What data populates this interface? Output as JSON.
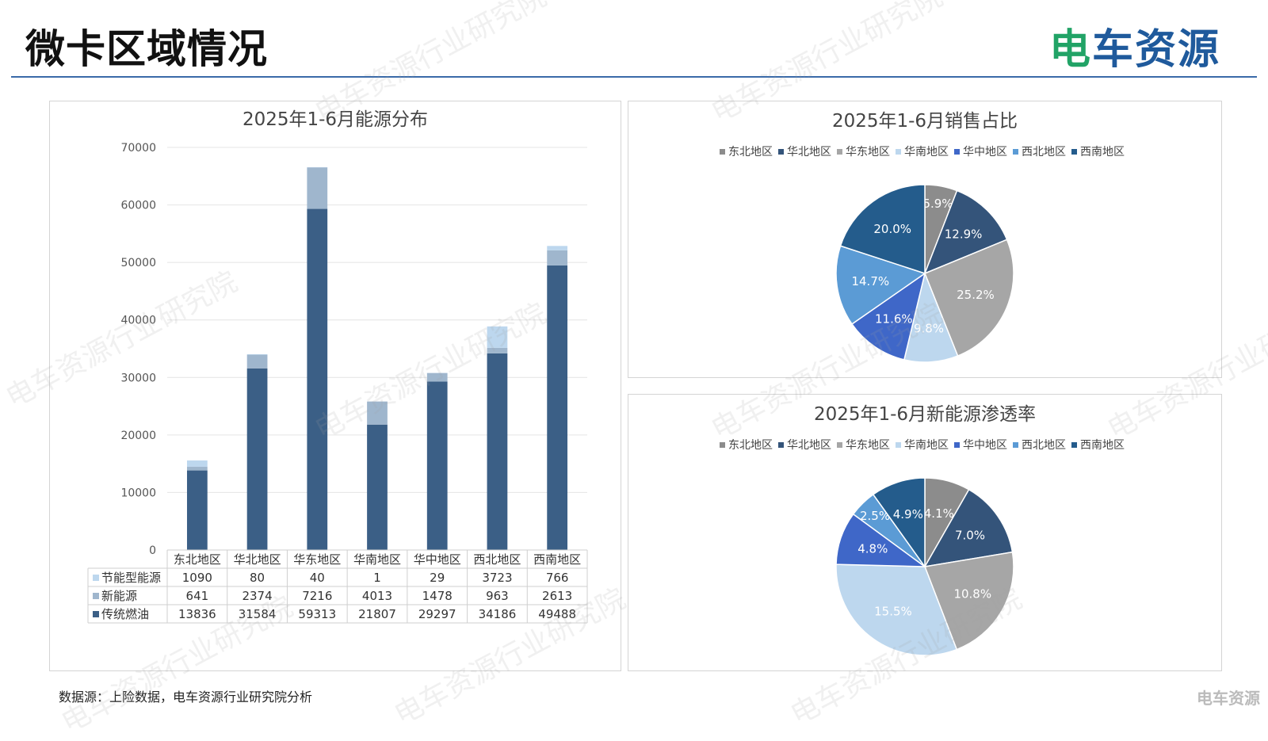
{
  "header": {
    "title": "微卡区域情况",
    "brand_left": "电",
    "brand_right": "车资源"
  },
  "footer": {
    "source": "数据源：上险数据，电车资源行业研究院分析",
    "corner": "电车资源"
  },
  "watermark": "电车资源行业研究院",
  "chart_data": [
    {
      "type": "bar",
      "stacked": true,
      "title": "2025年1-6月能源分布",
      "categories": [
        "东北地区",
        "华北地区",
        "华东地区",
        "华南地区",
        "华中地区",
        "西北地区",
        "西南地区"
      ],
      "ylim": [
        0,
        70000
      ],
      "yticks": [
        0,
        10000,
        20000,
        30000,
        40000,
        50000,
        60000,
        70000
      ],
      "grid": true,
      "legend": "data-table",
      "series": [
        {
          "name": "节能型能源",
          "color": "#bdd7ee",
          "values": [
            1090,
            80,
            40,
            1,
            29,
            3723,
            766
          ]
        },
        {
          "name": "新能源",
          "color": "#9fb6cd",
          "values": [
            641,
            2374,
            7216,
            4013,
            1478,
            963,
            2613
          ]
        },
        {
          "name": "传统燃油",
          "color": "#3b5f86",
          "values": [
            13836,
            31584,
            59313,
            21807,
            29297,
            34186,
            49488
          ]
        }
      ]
    },
    {
      "type": "pie",
      "title": "2025年1-6月销售占比",
      "legend": "top",
      "labels": [
        "东北地区",
        "华北地区",
        "华东地区",
        "华南地区",
        "华中地区",
        "西北地区",
        "西南地区"
      ],
      "values": [
        5.9,
        12.9,
        25.2,
        9.8,
        11.6,
        14.7,
        20.0
      ],
      "value_labels": [
        "5.9%",
        "12.9%",
        "25.2%",
        "9.8%",
        "11.6%",
        "14.7%",
        "20.0%"
      ],
      "colors": [
        "#8c8c8c",
        "#34547a",
        "#a6a6a6",
        "#bdd7ee",
        "#3f67c8",
        "#5b9bd5",
        "#245c8c"
      ]
    },
    {
      "type": "pie",
      "title": "2025年1-6月新能源渗透率",
      "legend": "top",
      "labels": [
        "东北地区",
        "华北地区",
        "华东地区",
        "华南地区",
        "华中地区",
        "西北地区",
        "西南地区"
      ],
      "values": [
        4.1,
        7.0,
        10.8,
        15.5,
        4.8,
        2.5,
        4.9
      ],
      "value_labels": [
        "4.1%",
        "7.0%",
        "10.8%",
        "15.5%",
        "4.8%",
        "2.5%",
        "4.9%"
      ],
      "colors": [
        "#8c8c8c",
        "#34547a",
        "#a6a6a6",
        "#bdd7ee",
        "#3f67c8",
        "#5b9bd5",
        "#245c8c"
      ]
    }
  ]
}
